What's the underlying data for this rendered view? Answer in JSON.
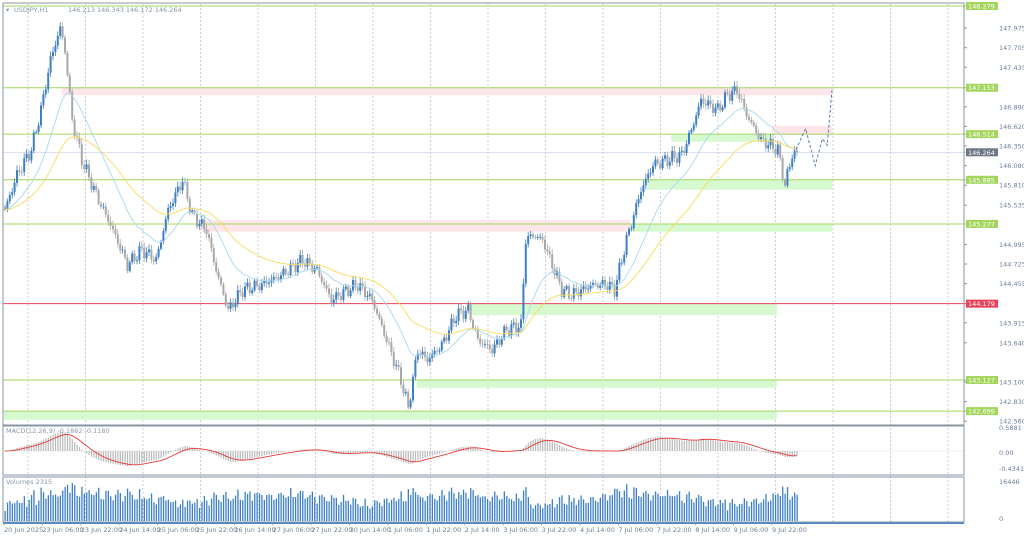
{
  "header": {
    "symbol": "USDJPY,H1",
    "ohlc": "146.213 146.343 146.172 146.264"
  },
  "colors": {
    "bull": "#3d7fc4",
    "bear": "#a8a8a8",
    "level": "#a4d65e",
    "level_red": "#e8435a",
    "zone_green": "#d6f9d0",
    "zone_pink": "#fde6ea",
    "ma_fast": "#a8d8f0",
    "ma_slow": "#f7dc5c",
    "macd_signal": "#e83a3a",
    "price_line": "#6c7687"
  },
  "price_axis": {
    "range": [
      142.56,
      148.279
    ],
    "ticks": [
      "147.975",
      "147.705",
      "147.435",
      "146.890",
      "146.620",
      "146.350",
      "146.080",
      "145.810",
      "145.535",
      "144.995",
      "144.725",
      "144.455",
      "143.915",
      "143.640",
      "143.100",
      "142.830",
      "142.560"
    ]
  },
  "levels": [
    {
      "price": 148.279,
      "label": "148.279",
      "color": "green"
    },
    {
      "price": 147.153,
      "label": "147.153",
      "color": "green"
    },
    {
      "price": 146.514,
      "label": "146.514",
      "color": "green"
    },
    {
      "price": 145.885,
      "label": "145.885",
      "color": "green"
    },
    {
      "price": 145.277,
      "label": "145.277",
      "color": "green"
    },
    {
      "price": 144.179,
      "label": "144.179",
      "color": "red"
    },
    {
      "price": 143.127,
      "label": "143.127",
      "color": "green"
    },
    {
      "price": 142.699,
      "label": "142.699",
      "color": "green"
    }
  ],
  "current_price": {
    "price": 146.264,
    "label": "146.264"
  },
  "zones": [
    {
      "type": "pink",
      "from_bar": 24,
      "to_bar": 345,
      "top": 147.153,
      "bottom": 147.05
    },
    {
      "type": "pink",
      "from_bar": 320,
      "to_bar": 345,
      "top": 146.63,
      "bottom": 146.5
    },
    {
      "type": "green",
      "from_bar": 278,
      "to_bar": 320,
      "top": 146.514,
      "bottom": 146.41
    },
    {
      "type": "green",
      "from_bar": 268,
      "to_bar": 345,
      "top": 145.885,
      "bottom": 145.75
    },
    {
      "type": "green",
      "from_bar": 261,
      "to_bar": 345,
      "top": 145.277,
      "bottom": 145.17
    },
    {
      "type": "pink",
      "from_bar": 82,
      "to_bar": 261,
      "top": 145.33,
      "bottom": 145.17
    },
    {
      "type": "green",
      "from_bar": 194,
      "to_bar": 322,
      "top": 144.179,
      "bottom": 144.02
    },
    {
      "type": "green",
      "from_bar": 172,
      "to_bar": 322,
      "top": 143.127,
      "bottom": 143.02
    },
    {
      "type": "green",
      "from_bar": 0,
      "to_bar": 322,
      "top": 142.699,
      "bottom": 142.58
    }
  ],
  "forecast": [
    [
      330,
      146.3
    ],
    [
      334,
      146.59
    ],
    [
      338,
      146.08
    ],
    [
      341,
      146.45
    ],
    [
      343,
      146.36
    ],
    [
      345,
      147.12
    ]
  ],
  "close_path": [
    [
      0,
      145.47
    ],
    [
      5,
      145.95
    ],
    [
      11,
      146.3
    ],
    [
      15,
      146.85
    ],
    [
      19,
      147.54
    ],
    [
      23,
      147.98
    ],
    [
      25,
      147.67
    ],
    [
      28,
      146.71
    ],
    [
      32,
      146.16
    ],
    [
      38,
      145.68
    ],
    [
      45,
      145.19
    ],
    [
      51,
      144.71
    ],
    [
      57,
      144.92
    ],
    [
      63,
      144.78
    ],
    [
      68,
      145.47
    ],
    [
      74,
      145.88
    ],
    [
      78,
      145.4
    ],
    [
      84,
      145.19
    ],
    [
      88,
      144.64
    ],
    [
      93,
      144.09
    ],
    [
      99,
      144.37
    ],
    [
      107,
      144.44
    ],
    [
      115,
      144.57
    ],
    [
      124,
      144.78
    ],
    [
      130,
      144.64
    ],
    [
      136,
      144.23
    ],
    [
      143,
      144.37
    ],
    [
      147,
      144.44
    ],
    [
      153,
      144.23
    ],
    [
      159,
      143.68
    ],
    [
      165,
      143.13
    ],
    [
      168,
      142.74
    ],
    [
      172,
      143.54
    ],
    [
      176,
      143.4
    ],
    [
      182,
      143.61
    ],
    [
      188,
      144.02
    ],
    [
      193,
      144.09
    ],
    [
      197,
      143.68
    ],
    [
      203,
      143.54
    ],
    [
      209,
      143.82
    ],
    [
      215,
      143.88
    ],
    [
      217,
      145.06
    ],
    [
      220,
      145.12
    ],
    [
      224,
      145.06
    ],
    [
      228,
      144.71
    ],
    [
      232,
      144.37
    ],
    [
      236,
      144.3
    ],
    [
      245,
      144.44
    ],
    [
      251,
      144.44
    ],
    [
      254,
      144.37
    ],
    [
      259,
      145.06
    ],
    [
      265,
      145.74
    ],
    [
      270,
      146.09
    ],
    [
      276,
      146.16
    ],
    [
      282,
      146.23
    ],
    [
      286,
      146.57
    ],
    [
      290,
      146.98
    ],
    [
      297,
      146.85
    ],
    [
      301,
      147.05
    ],
    [
      305,
      147.12
    ],
    [
      309,
      146.78
    ],
    [
      315,
      146.43
    ],
    [
      322,
      146.3
    ],
    [
      325,
      145.81
    ],
    [
      328,
      146.23
    ],
    [
      330,
      146.264
    ]
  ],
  "macd": {
    "label": "MACD(12,26,9) -0.1882 -0.1180",
    "ticks": [
      "0.5881",
      "0.00",
      "-0.4341"
    ]
  },
  "volumes": {
    "label": "Volumes 2315",
    "ticks": [
      "16446",
      "0"
    ]
  },
  "time_axis": [
    {
      "bar": 0,
      "label": "20 Jun 2025"
    },
    {
      "bar": 16,
      "label": "23 Jun 06:00"
    },
    {
      "bar": 32,
      "label": "23 Jun 22:00"
    },
    {
      "bar": 48,
      "label": "24 Jun 14:00"
    },
    {
      "bar": 64,
      "label": "25 Jun 06:00"
    },
    {
      "bar": 80,
      "label": "25 Jun 22:00"
    },
    {
      "bar": 96,
      "label": "26 Jun 14:00"
    },
    {
      "bar": 112,
      "label": "27 Jun 06:00"
    },
    {
      "bar": 128,
      "label": "27 Jun 22:00"
    },
    {
      "bar": 144,
      "label": "30 Jun 14:00"
    },
    {
      "bar": 160,
      "label": "1 Jul 06:00"
    },
    {
      "bar": 176,
      "label": "1 Jul 22:00"
    },
    {
      "bar": 192,
      "label": "2 Jul 14:00"
    },
    {
      "bar": 208,
      "label": "3 Jul 06:00"
    },
    {
      "bar": 224,
      "label": "3 Jul 22:00"
    },
    {
      "bar": 240,
      "label": "4 Jul 14:00"
    },
    {
      "bar": 256,
      "label": "7 Jul 06:00"
    },
    {
      "bar": 272,
      "label": "7 Jul 22:00"
    },
    {
      "bar": 288,
      "label": "8 Jul 14:00"
    },
    {
      "bar": 304,
      "label": "9 Jul 06:00"
    },
    {
      "bar": 320,
      "label": "9 Jul 22:00"
    }
  ]
}
